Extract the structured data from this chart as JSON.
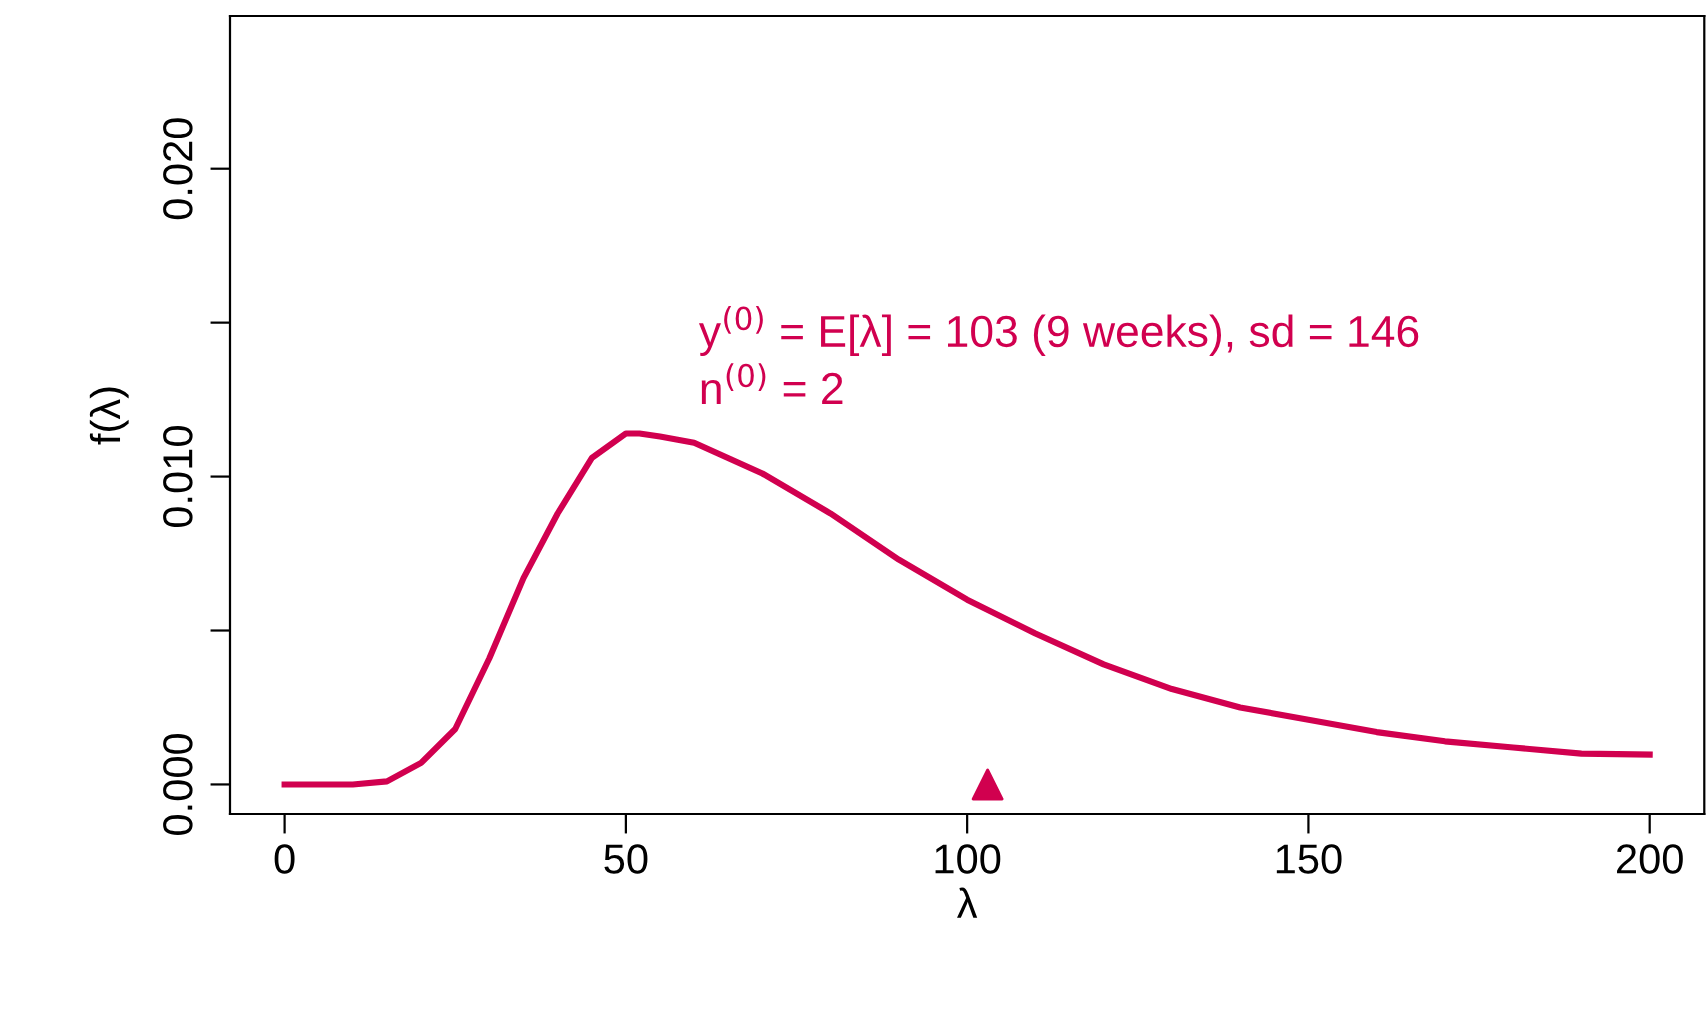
{
  "chart_data": {
    "type": "line",
    "xlabel": "λ",
    "ylabel": "f(λ)",
    "xlim": [
      -8,
      208
    ],
    "xticks": [
      0,
      50,
      100,
      150,
      200
    ],
    "ylim": [
      -0.00096,
      0.02496
    ],
    "yticks": [
      {
        "value": 0,
        "label": "0.000"
      },
      {
        "value": 0.005,
        "label": null
      },
      {
        "value": 0.01,
        "label": "0.010"
      },
      {
        "value": 0.015,
        "label": null
      },
      {
        "value": 0.02,
        "label": "0.020"
      }
    ],
    "grid": false,
    "annotations": [
      "y$^{(0)}$ = E[λ] = 103 (9 weeks), sd = 146",
      "n$^{(0)}$ = 2"
    ],
    "series": [
      {
        "color": "#d1004f",
        "marker": "none",
        "x": [
          0,
          10,
          15,
          20,
          25,
          30,
          35,
          40,
          45,
          50,
          52,
          55,
          60,
          70,
          80,
          90,
          100,
          110,
          120,
          130,
          140,
          150,
          160,
          170,
          180,
          190,
          200
        ],
        "values": [
          0,
          0,
          0.0001,
          0.0007,
          0.0018,
          0.0041,
          0.0067,
          0.0088,
          0.0106,
          0.0114,
          0.0114,
          0.0113,
          0.0111,
          0.0101,
          0.0088,
          0.0073,
          0.006,
          0.0049,
          0.0039,
          0.0031,
          0.0025,
          0.0021,
          0.0017,
          0.0014,
          0.0012,
          0.001,
          0.00097
        ]
      },
      {
        "type": "scatter",
        "color": "#d1004f",
        "marker": "triangle",
        "x": [
          103
        ],
        "values": [
          0
        ]
      }
    ]
  }
}
